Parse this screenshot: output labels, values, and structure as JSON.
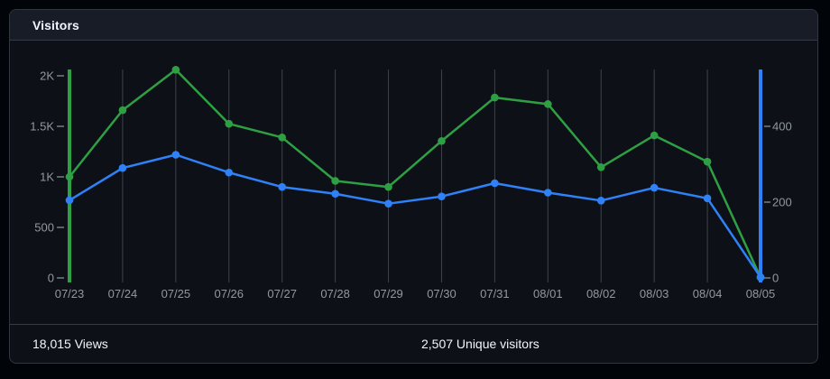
{
  "card": {
    "title": "Visitors",
    "footer": {
      "views_summary": "18,015 Views",
      "unique_summary": "2,507 Unique visitors"
    }
  },
  "colors": {
    "background": "#010409",
    "card_bg": "#0d1117",
    "card_header_bg": "#171c26",
    "border": "#343b45",
    "grid": "#3d434b",
    "axis_tick": "#767e87",
    "axis_label": "#9198a1",
    "title_text": "#f0f6fc",
    "views_green": "#2ea043",
    "unique_blue": "#2f81f7"
  },
  "chart_data": {
    "type": "line",
    "title": "Visitors",
    "grid": "vertical-only",
    "legend": "none",
    "x": [
      "07/23",
      "07/24",
      "07/25",
      "07/26",
      "07/27",
      "07/28",
      "07/29",
      "07/30",
      "07/31",
      "08/01",
      "08/02",
      "08/03",
      "08/04",
      "08/05"
    ],
    "series": [
      {
        "name": "Views",
        "axis": "left",
        "color": "#2ea043",
        "values": [
          1000,
          1660,
          2060,
          1525,
          1390,
          960,
          900,
          1355,
          1785,
          1720,
          1095,
          1410,
          1150,
          5
        ]
      },
      {
        "name": "Unique visitors",
        "axis": "right",
        "color": "#2f81f7",
        "values": [
          205,
          290,
          325,
          278,
          240,
          222,
          196,
          215,
          250,
          225,
          204,
          238,
          210,
          2
        ]
      }
    ],
    "left_axis": {
      "tick_labels": [
        "0",
        "500",
        "1K",
        "1.5K",
        "2K"
      ],
      "tick_values": [
        0,
        500,
        1000,
        1500,
        2000
      ],
      "range": [
        0,
        2060
      ]
    },
    "right_axis": {
      "tick_labels": [
        "0",
        "200",
        "400"
      ],
      "tick_values": [
        0,
        200,
        400
      ],
      "range": [
        0,
        550
      ]
    }
  }
}
